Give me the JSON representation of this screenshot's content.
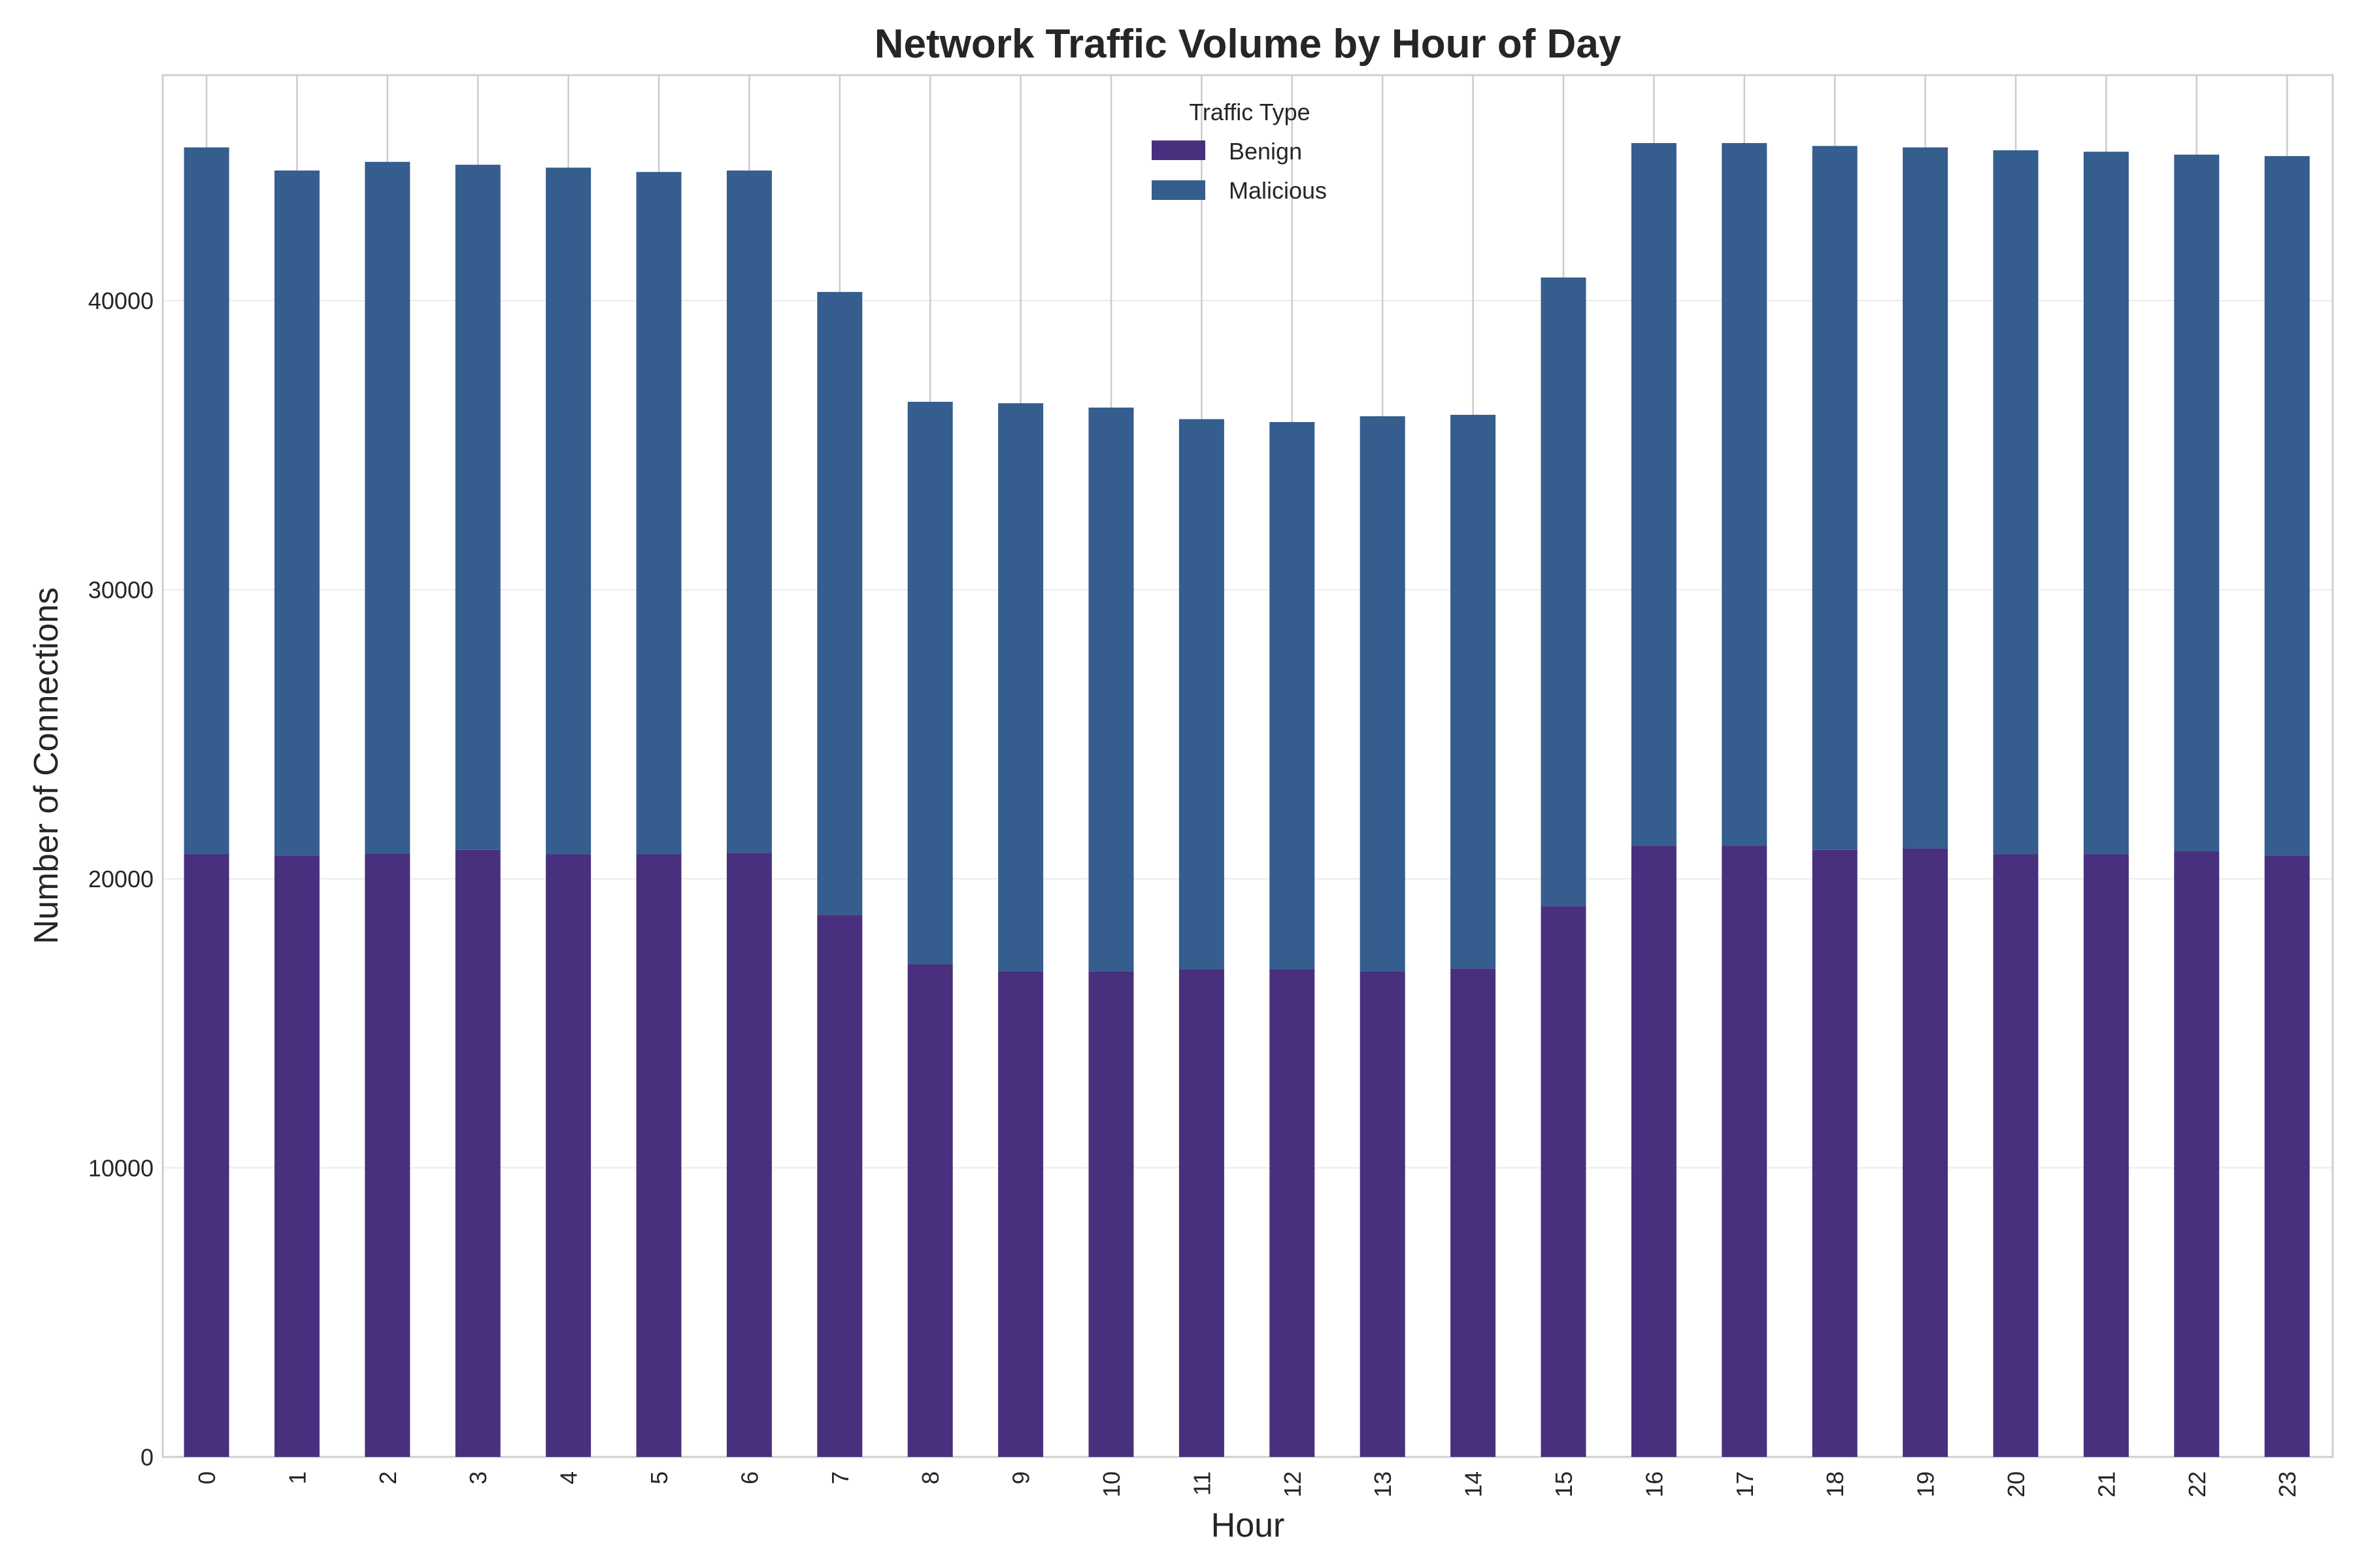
{
  "chart_data": {
    "type": "bar",
    "stacked": true,
    "title": "Network Traffic Volume by Hour of Day",
    "xlabel": "Hour",
    "ylabel": "Number of Connections",
    "categories": [
      "0",
      "1",
      "2",
      "3",
      "4",
      "5",
      "6",
      "7",
      "8",
      "9",
      "10",
      "11",
      "12",
      "13",
      "14",
      "15",
      "16",
      "17",
      "18",
      "19",
      "20",
      "21",
      "22",
      "23"
    ],
    "series": [
      {
        "name": "Benign",
        "color": "#48307e",
        "values": [
          20850,
          20800,
          20870,
          21000,
          20850,
          20850,
          20900,
          18750,
          17050,
          16800,
          16800,
          16870,
          16870,
          16800,
          16900,
          19050,
          21150,
          21150,
          21000,
          21050,
          20850,
          20850,
          20950,
          20800
        ]
      },
      {
        "name": "Malicious",
        "color": "#355d8e",
        "values": [
          24450,
          23700,
          23930,
          23700,
          23750,
          23600,
          23600,
          21550,
          19450,
          19650,
          19500,
          19030,
          18930,
          19200,
          19150,
          21750,
          24300,
          24300,
          24350,
          24250,
          24350,
          24300,
          24100,
          24200
        ]
      }
    ],
    "yticks": [
      "0",
      "10000",
      "20000",
      "30000",
      "40000"
    ],
    "ylim": [
      0,
      47800
    ],
    "legend": {
      "title": "Traffic Type",
      "position": "top-center"
    },
    "grid": true
  }
}
